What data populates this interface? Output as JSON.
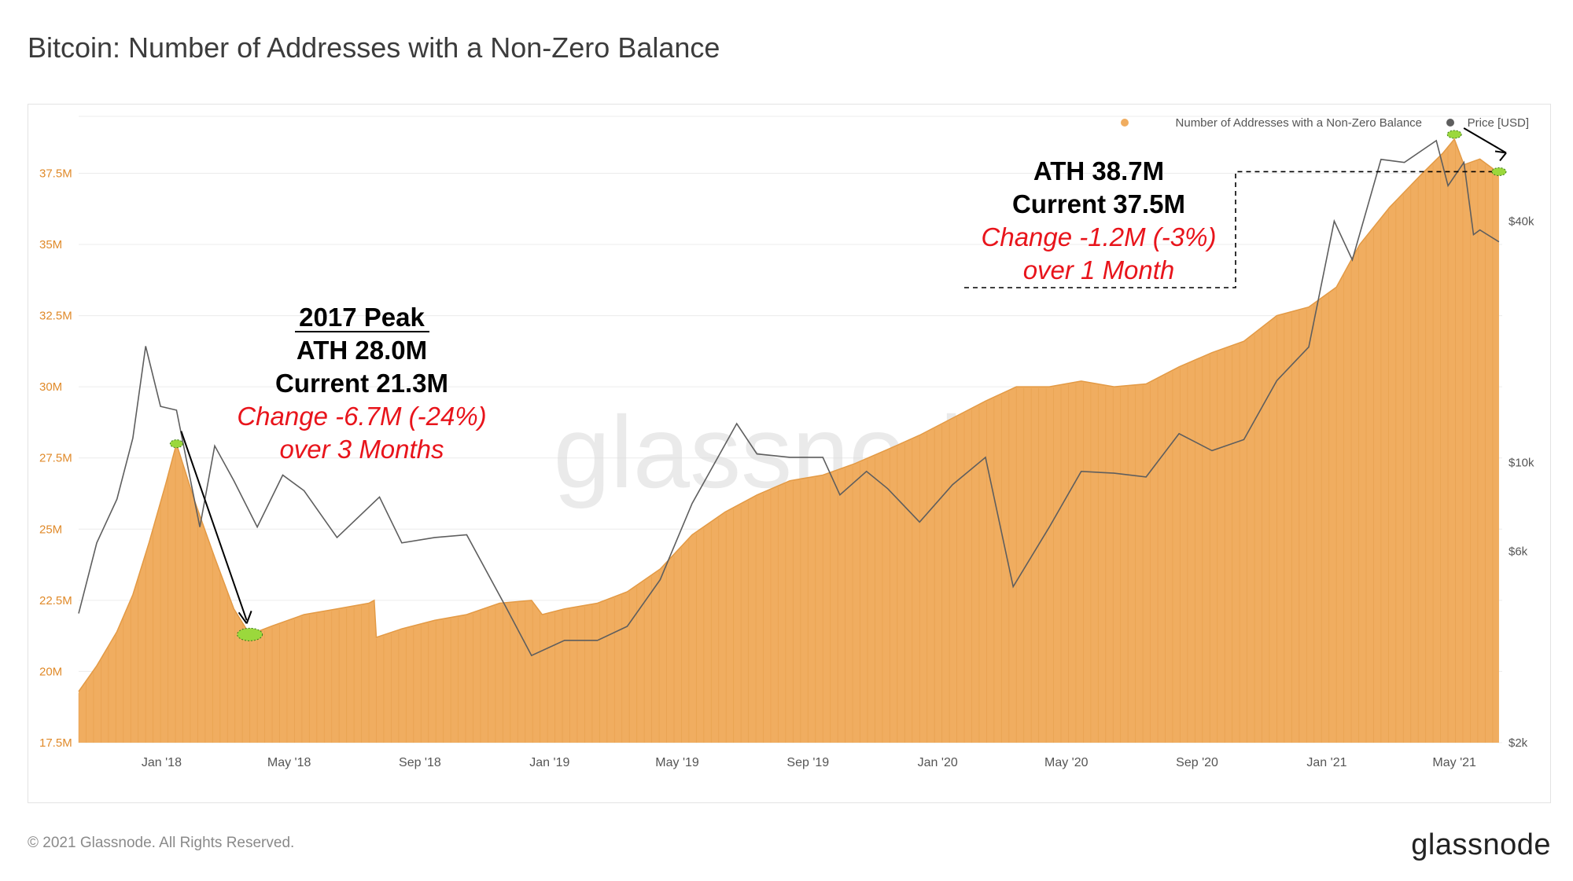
{
  "header": {
    "title": "Bitcoin: Number of Addresses with a Non-Zero Balance"
  },
  "footer": {
    "copyright": "© 2021 Glassnode. All Rights Reserved.",
    "logo": "glassnode"
  },
  "watermark": "glassnode",
  "colors": {
    "area": "#f0ad60",
    "area_lines": "#e39a45",
    "price": "#5e5e5e",
    "annotation_red": "#e8141b",
    "marker_green": "#9bd83c",
    "grid": "#ececec",
    "axis_text": "#e08a2a",
    "right_axis_text": "#555555"
  },
  "chart_data": {
    "type": "area",
    "title": "Bitcoin: Number of Addresses with a Non-Zero Balance",
    "x_range": [
      "2017-10-15",
      "2021-06-15"
    ],
    "x_ticks": [
      {
        "date": "2018-01-01",
        "label": "Jan '18"
      },
      {
        "date": "2018-05-01",
        "label": "May '18"
      },
      {
        "date": "2018-09-01",
        "label": "Sep '18"
      },
      {
        "date": "2019-01-01",
        "label": "Jan '19"
      },
      {
        "date": "2019-05-01",
        "label": "May '19"
      },
      {
        "date": "2019-09-01",
        "label": "Sep '19"
      },
      {
        "date": "2020-01-01",
        "label": "Jan '20"
      },
      {
        "date": "2020-05-01",
        "label": "May '20"
      },
      {
        "date": "2020-09-01",
        "label": "Sep '20"
      },
      {
        "date": "2021-01-01",
        "label": "Jan '21"
      },
      {
        "date": "2021-05-01",
        "label": "May '21"
      }
    ],
    "y_left": {
      "unit": "addresses (M)",
      "range": [
        17.5,
        39.5
      ],
      "ticks": [
        {
          "value": 17.5,
          "label": "17.5M"
        },
        {
          "value": 20,
          "label": "20M"
        },
        {
          "value": 22.5,
          "label": "22.5M"
        },
        {
          "value": 25,
          "label": "25M"
        },
        {
          "value": 27.5,
          "label": "27.5M"
        },
        {
          "value": 30,
          "label": "30M"
        },
        {
          "value": 32.5,
          "label": "32.5M"
        },
        {
          "value": 35,
          "label": "35M"
        },
        {
          "value": 37.5,
          "label": "37.5M"
        }
      ]
    },
    "y_right": {
      "unit": "Price [USD]",
      "scale": "log",
      "range": [
        2000,
        73000
      ],
      "ticks": [
        {
          "value": 2000,
          "label": "$2k"
        },
        {
          "value": 6000,
          "label": "$6k"
        },
        {
          "value": 10000,
          "label": "$10k"
        },
        {
          "value": 40000,
          "label": "$40k"
        }
      ]
    },
    "legend": {
      "position": "top-right",
      "items": [
        {
          "label": "Number of Addresses with a Non-Zero Balance",
          "color": "#f0ad60"
        },
        {
          "label": "Price [USD]",
          "color": "#5e5e5e"
        }
      ]
    },
    "series": [
      {
        "name": "Number of Addresses with a Non-Zero Balance",
        "axis": "left",
        "points": [
          [
            "2017-10-15",
            19.3
          ],
          [
            "2017-11-01",
            20.2
          ],
          [
            "2017-11-20",
            21.4
          ],
          [
            "2017-12-05",
            22.7
          ],
          [
            "2017-12-20",
            24.5
          ],
          [
            "2018-01-05",
            26.6
          ],
          [
            "2018-01-15",
            28.0
          ],
          [
            "2018-02-01",
            26.0
          ],
          [
            "2018-02-20",
            24.0
          ],
          [
            "2018-03-10",
            22.2
          ],
          [
            "2018-03-25",
            21.3
          ],
          [
            "2018-04-15",
            21.6
          ],
          [
            "2018-05-15",
            22.0
          ],
          [
            "2018-06-15",
            22.2
          ],
          [
            "2018-07-15",
            22.4
          ],
          [
            "2018-07-20",
            22.5
          ],
          [
            "2018-07-22",
            21.2
          ],
          [
            "2018-08-15",
            21.5
          ],
          [
            "2018-09-15",
            21.8
          ],
          [
            "2018-10-15",
            22.0
          ],
          [
            "2018-11-15",
            22.4
          ],
          [
            "2018-12-15",
            22.5
          ],
          [
            "2018-12-25",
            22.0
          ],
          [
            "2019-01-15",
            22.2
          ],
          [
            "2019-02-15",
            22.4
          ],
          [
            "2019-03-15",
            22.8
          ],
          [
            "2019-04-15",
            23.6
          ],
          [
            "2019-05-15",
            24.8
          ],
          [
            "2019-06-15",
            25.6
          ],
          [
            "2019-07-15",
            26.2
          ],
          [
            "2019-08-15",
            26.7
          ],
          [
            "2019-09-15",
            26.9
          ],
          [
            "2019-10-15",
            27.3
          ],
          [
            "2019-11-15",
            27.8
          ],
          [
            "2019-12-15",
            28.3
          ],
          [
            "2020-01-15",
            28.9
          ],
          [
            "2020-02-15",
            29.5
          ],
          [
            "2020-03-15",
            30.0
          ],
          [
            "2020-04-15",
            30.0
          ],
          [
            "2020-05-15",
            30.2
          ],
          [
            "2020-06-15",
            30.0
          ],
          [
            "2020-07-15",
            30.1
          ],
          [
            "2020-08-15",
            30.7
          ],
          [
            "2020-09-15",
            31.2
          ],
          [
            "2020-10-15",
            31.6
          ],
          [
            "2020-11-15",
            32.5
          ],
          [
            "2020-12-15",
            32.8
          ],
          [
            "2021-01-10",
            33.5
          ],
          [
            "2021-02-01",
            35.0
          ],
          [
            "2021-03-01",
            36.3
          ],
          [
            "2021-04-01",
            37.5
          ],
          [
            "2021-04-20",
            38.2
          ],
          [
            "2021-05-01",
            38.7
          ],
          [
            "2021-05-10",
            37.8
          ],
          [
            "2021-05-25",
            38.0
          ],
          [
            "2021-06-12",
            37.5
          ]
        ]
      },
      {
        "name": "Price [USD]",
        "axis": "right",
        "points": [
          [
            "2017-10-15",
            4200
          ],
          [
            "2017-11-01",
            6300
          ],
          [
            "2017-11-20",
            8100
          ],
          [
            "2017-12-05",
            11500
          ],
          [
            "2017-12-17",
            19500
          ],
          [
            "2017-12-31",
            13800
          ],
          [
            "2018-01-15",
            13500
          ],
          [
            "2018-02-06",
            6900
          ],
          [
            "2018-02-20",
            11000
          ],
          [
            "2018-03-10",
            9000
          ],
          [
            "2018-04-01",
            6900
          ],
          [
            "2018-04-25",
            9300
          ],
          [
            "2018-05-15",
            8500
          ],
          [
            "2018-06-15",
            6500
          ],
          [
            "2018-07-25",
            8200
          ],
          [
            "2018-08-15",
            6300
          ],
          [
            "2018-09-15",
            6500
          ],
          [
            "2018-10-15",
            6600
          ],
          [
            "2018-11-20",
            4400
          ],
          [
            "2018-12-15",
            3300
          ],
          [
            "2019-01-15",
            3600
          ],
          [
            "2019-02-15",
            3600
          ],
          [
            "2019-03-15",
            3900
          ],
          [
            "2019-04-15",
            5100
          ],
          [
            "2019-05-15",
            7900
          ],
          [
            "2019-06-26",
            12500
          ],
          [
            "2019-07-15",
            10500
          ],
          [
            "2019-08-15",
            10300
          ],
          [
            "2019-09-15",
            10300
          ],
          [
            "2019-10-01",
            8300
          ],
          [
            "2019-10-26",
            9500
          ],
          [
            "2019-11-15",
            8600
          ],
          [
            "2019-12-15",
            7100
          ],
          [
            "2020-01-15",
            8800
          ],
          [
            "2020-02-15",
            10300
          ],
          [
            "2020-03-12",
            4900
          ],
          [
            "2020-04-15",
            6900
          ],
          [
            "2020-05-15",
            9500
          ],
          [
            "2020-06-15",
            9400
          ],
          [
            "2020-07-15",
            9200
          ],
          [
            "2020-08-15",
            11800
          ],
          [
            "2020-09-15",
            10700
          ],
          [
            "2020-10-15",
            11400
          ],
          [
            "2020-11-15",
            16000
          ],
          [
            "2020-12-15",
            19400
          ],
          [
            "2021-01-08",
            40000
          ],
          [
            "2021-01-25",
            32000
          ],
          [
            "2021-02-21",
            57000
          ],
          [
            "2021-03-15",
            56000
          ],
          [
            "2021-04-14",
            63500
          ],
          [
            "2021-04-25",
            49000
          ],
          [
            "2021-05-10",
            56000
          ],
          [
            "2021-05-19",
            37000
          ],
          [
            "2021-05-25",
            38000
          ],
          [
            "2021-06-12",
            35500
          ]
        ]
      }
    ],
    "annotations": {
      "peak_2017": {
        "heading": "2017 Peak",
        "ath": "ATH 28.0M",
        "current": "Current 21.3M",
        "change": "Change -6.7M (-24%)",
        "period": "over 3 Months",
        "from": {
          "date": "2018-01-15",
          "value": 28.0
        },
        "to": {
          "date": "2018-03-25",
          "value": 21.3
        }
      },
      "peak_2021": {
        "ath": "ATH 38.7M",
        "current": "Current 37.5M",
        "change": "Change -1.2M (-3%)",
        "period": "over 1 Month",
        "from": {
          "date": "2021-05-01",
          "value": 38.7
        },
        "to": {
          "date": "2021-06-12",
          "value": 37.5
        }
      }
    }
  }
}
